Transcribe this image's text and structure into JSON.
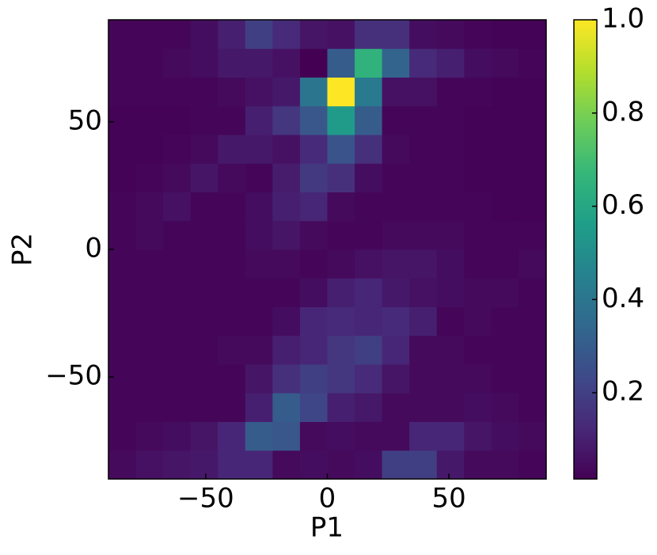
{
  "chart_data": {
    "type": "heatmap",
    "xlabel": "P1",
    "ylabel": "P2",
    "xbins": [
      -90,
      -78.75,
      -67.5,
      -56.25,
      -45,
      -33.75,
      -22.5,
      -11.25,
      0,
      11.25,
      22.5,
      33.75,
      45,
      56.25,
      67.5,
      78.75,
      90
    ],
    "ybins": [
      -90,
      -78.75,
      -67.5,
      -56.25,
      -45,
      -33.75,
      -22.5,
      -11.25,
      0,
      11.25,
      22.5,
      33.75,
      45,
      56.25,
      67.5,
      78.75,
      90
    ],
    "z": [
      [
        0.04,
        0.06,
        0.07,
        0.08,
        0.12,
        0.12,
        0.04,
        0.05,
        0.04,
        0.05,
        0.2,
        0.2,
        0.08,
        0.04,
        0.04,
        0.03
      ],
      [
        0.03,
        0.04,
        0.05,
        0.07,
        0.12,
        0.3,
        0.28,
        0.04,
        0.05,
        0.04,
        0.04,
        0.12,
        0.12,
        0.07,
        0.05,
        0.04
      ],
      [
        0.03,
        0.03,
        0.03,
        0.03,
        0.03,
        0.1,
        0.3,
        0.22,
        0.1,
        0.08,
        0.04,
        0.04,
        0.04,
        0.05,
        0.04,
        0.03
      ],
      [
        0.03,
        0.03,
        0.03,
        0.03,
        0.03,
        0.07,
        0.15,
        0.2,
        0.17,
        0.13,
        0.07,
        0.04,
        0.04,
        0.04,
        0.03,
        0.03
      ],
      [
        0.03,
        0.03,
        0.03,
        0.03,
        0.04,
        0.04,
        0.1,
        0.12,
        0.17,
        0.2,
        0.12,
        0.04,
        0.04,
        0.03,
        0.03,
        0.03
      ],
      [
        0.03,
        0.03,
        0.03,
        0.03,
        0.03,
        0.03,
        0.05,
        0.12,
        0.13,
        0.12,
        0.13,
        0.1,
        0.03,
        0.04,
        0.03,
        0.03
      ],
      [
        0.03,
        0.03,
        0.03,
        0.03,
        0.03,
        0.03,
        0.03,
        0.05,
        0.1,
        0.12,
        0.08,
        0.06,
        0.05,
        0.04,
        0.04,
        0.03
      ],
      [
        0.03,
        0.03,
        0.03,
        0.03,
        0.03,
        0.04,
        0.04,
        0.03,
        0.04,
        0.06,
        0.07,
        0.07,
        0.05,
        0.03,
        0.03,
        0.04
      ],
      [
        0.03,
        0.04,
        0.03,
        0.03,
        0.03,
        0.05,
        0.07,
        0.04,
        0.03,
        0.03,
        0.04,
        0.04,
        0.04,
        0.03,
        0.03,
        0.03
      ],
      [
        0.03,
        0.04,
        0.06,
        0.03,
        0.03,
        0.05,
        0.1,
        0.12,
        0.04,
        0.03,
        0.03,
        0.03,
        0.03,
        0.03,
        0.02,
        0.02
      ],
      [
        0.02,
        0.03,
        0.04,
        0.07,
        0.04,
        0.03,
        0.09,
        0.18,
        0.15,
        0.05,
        0.03,
        0.03,
        0.03,
        0.02,
        0.02,
        0.02
      ],
      [
        0.02,
        0.02,
        0.03,
        0.04,
        0.08,
        0.08,
        0.06,
        0.13,
        0.27,
        0.15,
        0.04,
        0.03,
        0.03,
        0.02,
        0.02,
        0.02
      ],
      [
        0.02,
        0.02,
        0.02,
        0.03,
        0.03,
        0.1,
        0.17,
        0.28,
        0.55,
        0.3,
        0.03,
        0.03,
        0.03,
        0.02,
        0.02,
        0.02
      ],
      [
        0.03,
        0.03,
        0.03,
        0.03,
        0.04,
        0.06,
        0.08,
        0.4,
        1.0,
        0.42,
        0.06,
        0.06,
        0.03,
        0.03,
        0.02,
        0.02
      ],
      [
        0.03,
        0.03,
        0.04,
        0.05,
        0.08,
        0.08,
        0.06,
        0.015,
        0.3,
        0.65,
        0.33,
        0.13,
        0.1,
        0.05,
        0.04,
        0.03
      ],
      [
        0.03,
        0.03,
        0.03,
        0.05,
        0.1,
        0.2,
        0.13,
        0.07,
        0.06,
        0.15,
        0.15,
        0.05,
        0.04,
        0.03,
        0.02,
        0.02
      ]
    ],
    "xlim": [
      -90,
      90
    ],
    "ylim": [
      -90,
      90
    ],
    "xticks": [
      {
        "value": -50,
        "label": "−50"
      },
      0,
      50
    ],
    "yticks": [
      {
        "value": -50,
        "label": "−50"
      },
      0,
      50
    ],
    "colormap": "viridis",
    "clim": [
      0.015,
      1
    ],
    "cticks": [
      0.2,
      0.4,
      0.6,
      0.8,
      {
        "value": 1,
        "label": "1.0"
      }
    ]
  }
}
